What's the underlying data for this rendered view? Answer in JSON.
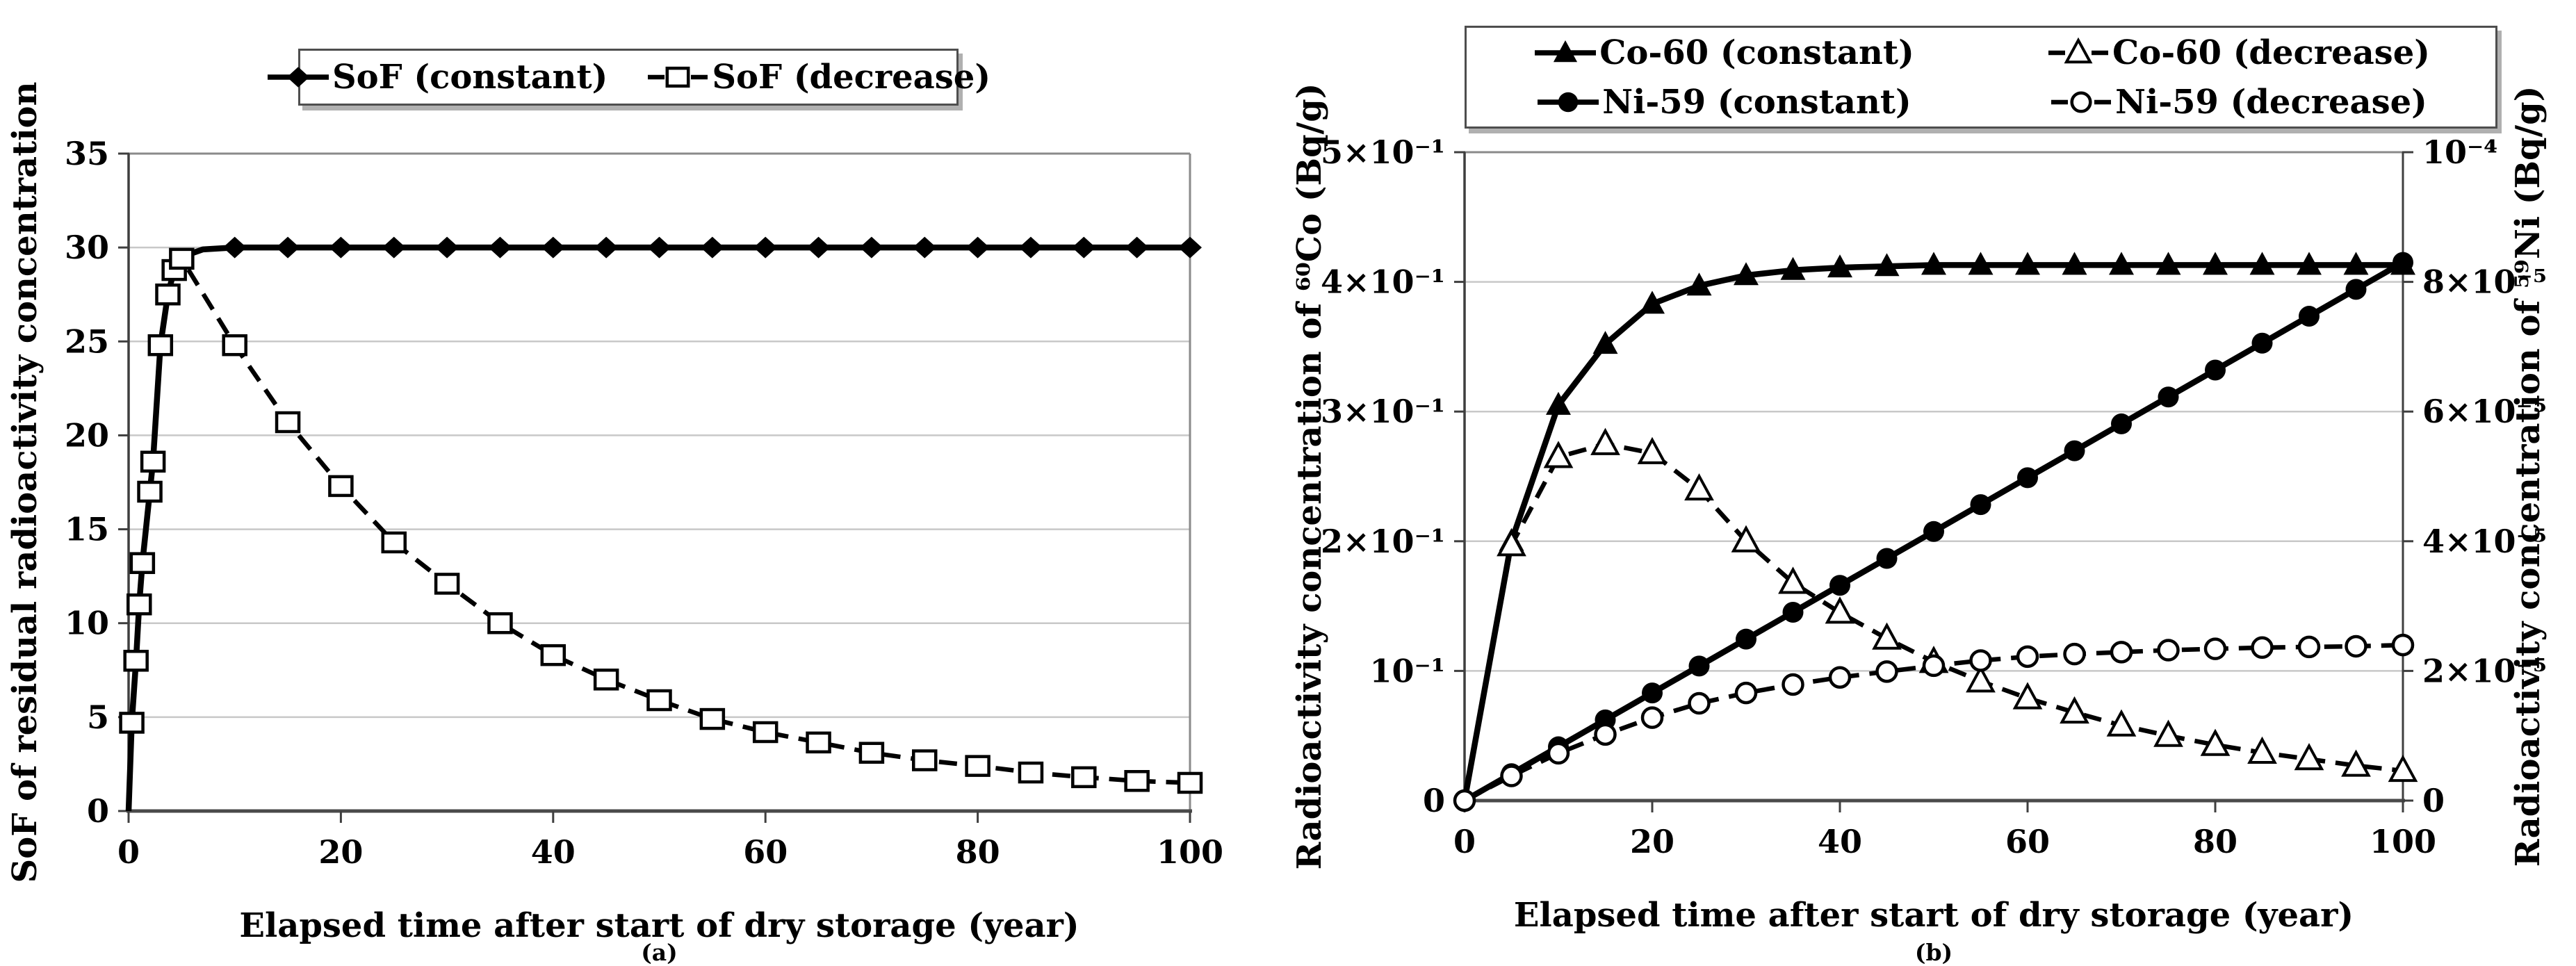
{
  "page": {
    "background": "#ffffff",
    "text_color": "#000000",
    "grid_color": "#c8c8c8",
    "series_color": "#000000"
  },
  "chart_data": [
    {
      "id": "a",
      "type": "line",
      "title": "",
      "caption": "(a)",
      "xlabel": "Elapsed time after start of dry storage (year)",
      "ylabel": "SoF of residual radioactivity concentration",
      "xlim": [
        0,
        100
      ],
      "ylim": [
        0,
        35
      ],
      "grid": "horizontal",
      "legend_position": "top-center",
      "x_ticks": [
        {
          "v": 0,
          "label": "0"
        },
        {
          "v": 20,
          "label": "20"
        },
        {
          "v": 40,
          "label": "40"
        },
        {
          "v": 60,
          "label": "60"
        },
        {
          "v": 80,
          "label": "80"
        },
        {
          "v": 100,
          "label": "100"
        }
      ],
      "y_ticks": [
        {
          "v": 0,
          "label": "0"
        },
        {
          "v": 5,
          "label": "5"
        },
        {
          "v": 10,
          "label": "10"
        },
        {
          "v": 15,
          "label": "15"
        },
        {
          "v": 20,
          "label": "20"
        },
        {
          "v": 25,
          "label": "25"
        },
        {
          "v": 30,
          "label": "30"
        },
        {
          "v": 35,
          "label": "35"
        }
      ],
      "series": [
        {
          "name": "SoF (constant)",
          "marker": "diamond-filled",
          "line": "solid",
          "axis": "left",
          "marker_min_x": 10,
          "x": [
            0,
            0.3,
            0.7,
            1,
            1.3,
            2,
            2.3,
            3,
            3.7,
            4.3,
            5,
            7,
            10,
            15,
            20,
            25,
            30,
            35,
            40,
            45,
            50,
            55,
            60,
            65,
            70,
            75,
            80,
            85,
            90,
            95,
            100
          ],
          "y": [
            0,
            4.7,
            8,
            11,
            13.2,
            17,
            18.6,
            24.8,
            27.5,
            28.8,
            29.5,
            29.9,
            30,
            30,
            30,
            30,
            30,
            30,
            30,
            30,
            30,
            30,
            30,
            30,
            30,
            30,
            30,
            30,
            30,
            30,
            30
          ]
        },
        {
          "name": "SoF (decrease)",
          "marker": "square-open",
          "line": "dashed",
          "axis": "left",
          "marker_min_x": 0.2,
          "x": [
            0,
            0.3,
            0.7,
            1,
            1.3,
            2,
            2.3,
            3,
            3.7,
            4.3,
            5,
            10,
            15,
            20,
            25,
            30,
            35,
            40,
            45,
            50,
            55,
            60,
            65,
            70,
            75,
            80,
            85,
            90,
            95,
            100
          ],
          "y": [
            0,
            4.7,
            8,
            11,
            13.2,
            17,
            18.6,
            24.8,
            27.5,
            28.8,
            29.4,
            24.8,
            20.7,
            17.3,
            14.3,
            12.1,
            10,
            8.3,
            7.0,
            5.9,
            4.9,
            4.2,
            3.65,
            3.1,
            2.7,
            2.4,
            2.05,
            1.8,
            1.6,
            1.5
          ]
        }
      ]
    },
    {
      "id": "b",
      "type": "line",
      "title": "",
      "caption": "(b)",
      "xlabel": "Elapsed time after start of dry storage (year)",
      "ylabel": "Radioactivity concentration of ⁶⁰Co (Bq/g)",
      "y2label": "Radioactivity concentration of ⁵⁹Ni (Bq/g)",
      "xlim": [
        0,
        100
      ],
      "ylim": [
        0,
        0.5
      ],
      "y2lim": [
        0,
        0.0001
      ],
      "grid": "horizontal",
      "legend_position": "top-center",
      "x_ticks": [
        {
          "v": 0,
          "label": "0"
        },
        {
          "v": 20,
          "label": "20"
        },
        {
          "v": 40,
          "label": "40"
        },
        {
          "v": 60,
          "label": "60"
        },
        {
          "v": 80,
          "label": "80"
        },
        {
          "v": 100,
          "label": "100"
        }
      ],
      "y_ticks": [
        {
          "v": 0,
          "label": "0"
        },
        {
          "v": 0.1,
          "label": "10⁻¹"
        },
        {
          "v": 0.2,
          "label": "2×10⁻¹"
        },
        {
          "v": 0.3,
          "label": "3×10⁻¹"
        },
        {
          "v": 0.4,
          "label": "4×10⁻¹"
        },
        {
          "v": 0.5,
          "label": "5×10⁻¹"
        }
      ],
      "y2_ticks": [
        {
          "v": 0,
          "label": "0"
        },
        {
          "v": 2e-05,
          "label": "2×10⁻⁵"
        },
        {
          "v": 4e-05,
          "label": "4×10⁻⁵"
        },
        {
          "v": 6e-05,
          "label": "6×10⁻⁵"
        },
        {
          "v": 8e-05,
          "label": "8×10⁻⁵"
        },
        {
          "v": 0.0001,
          "label": "10⁻⁴"
        }
      ],
      "series": [
        {
          "name": "Co-60 (constant)",
          "marker": "triangle-filled",
          "line": "solid",
          "axis": "left",
          "marker_min_x": 3,
          "x": [
            0,
            5,
            10,
            15,
            20,
            25,
            30,
            35,
            40,
            45,
            50,
            55,
            60,
            65,
            70,
            75,
            80,
            85,
            90,
            95,
            100
          ],
          "y": [
            0,
            0.2,
            0.305,
            0.352,
            0.383,
            0.397,
            0.405,
            0.409,
            0.411,
            0.412,
            0.413,
            0.413,
            0.413,
            0.413,
            0.413,
            0.413,
            0.413,
            0.413,
            0.413,
            0.413,
            0.413
          ]
        },
        {
          "name": "Co-60 (decrease)",
          "marker": "triangle-open",
          "line": "dashed",
          "axis": "left",
          "marker_min_x": 3,
          "x": [
            0,
            5,
            10,
            15,
            20,
            25,
            30,
            35,
            40,
            45,
            50,
            55,
            60,
            65,
            70,
            75,
            80,
            85,
            90,
            95,
            100
          ],
          "y": [
            0,
            0.197,
            0.265,
            0.275,
            0.268,
            0.24,
            0.2,
            0.168,
            0.145,
            0.125,
            0.107,
            0.092,
            0.079,
            0.068,
            0.058,
            0.05,
            0.043,
            0.037,
            0.032,
            0.027,
            0.023
          ]
        },
        {
          "name": "Ni-59 (constant)",
          "marker": "circle-filled",
          "line": "solid",
          "axis": "right",
          "x": [
            0,
            5,
            10,
            15,
            20,
            25,
            30,
            35,
            40,
            45,
            50,
            55,
            60,
            65,
            70,
            75,
            80,
            85,
            90,
            95,
            100
          ],
          "y": [
            0,
            4.15e-06,
            8.3e-06,
            1.245e-05,
            1.66e-05,
            2.075e-05,
            2.49e-05,
            2.905e-05,
            3.32e-05,
            3.735e-05,
            4.15e-05,
            4.565e-05,
            4.98e-05,
            5.395e-05,
            5.81e-05,
            6.225e-05,
            6.64e-05,
            7.055e-05,
            7.47e-05,
            7.885e-05,
            8.3e-05
          ]
        },
        {
          "name": "Ni-59 (decrease)",
          "marker": "circle-open",
          "line": "dashed",
          "axis": "right",
          "x": [
            0,
            5,
            10,
            15,
            20,
            25,
            30,
            35,
            40,
            45,
            50,
            55,
            60,
            65,
            70,
            75,
            80,
            85,
            90,
            95,
            100
          ],
          "y": [
            0,
            3.8e-06,
            7.3e-06,
            1.02e-05,
            1.28e-05,
            1.5e-05,
            1.66e-05,
            1.79e-05,
            1.9e-05,
            1.99e-05,
            2.08e-05,
            2.16e-05,
            2.22e-05,
            2.26e-05,
            2.29e-05,
            2.32e-05,
            2.34e-05,
            2.36e-05,
            2.37e-05,
            2.38e-05,
            2.4e-05
          ]
        }
      ]
    }
  ]
}
